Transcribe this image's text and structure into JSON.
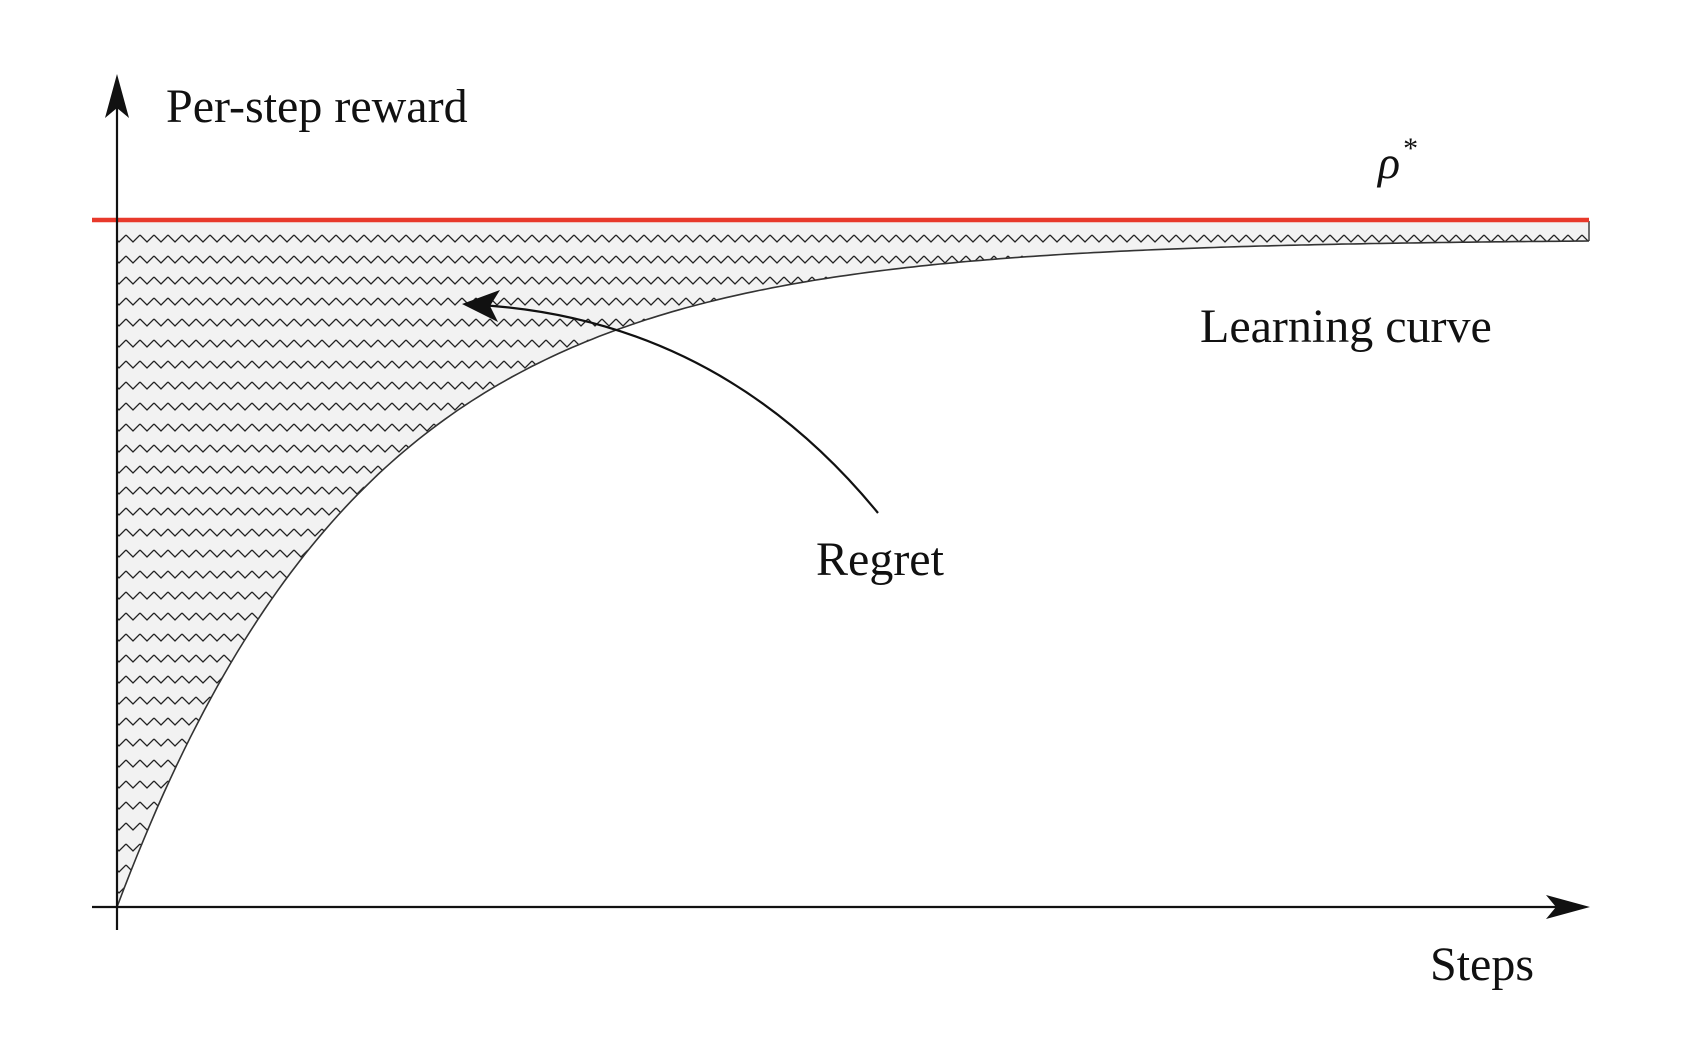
{
  "diagram": {
    "y_axis_label": "Per-step reward",
    "x_axis_label": "Steps",
    "optimal_label": {
      "symbol": "ρ",
      "superscript": "*"
    },
    "curve_label": "Learning curve",
    "region_label": "Regret"
  },
  "colors": {
    "optimal_line": "#e8392b",
    "axis": "#111111",
    "curve": "#333333",
    "hatch_fill": "#f2f2f2",
    "hatch_stroke": "#222222"
  }
}
